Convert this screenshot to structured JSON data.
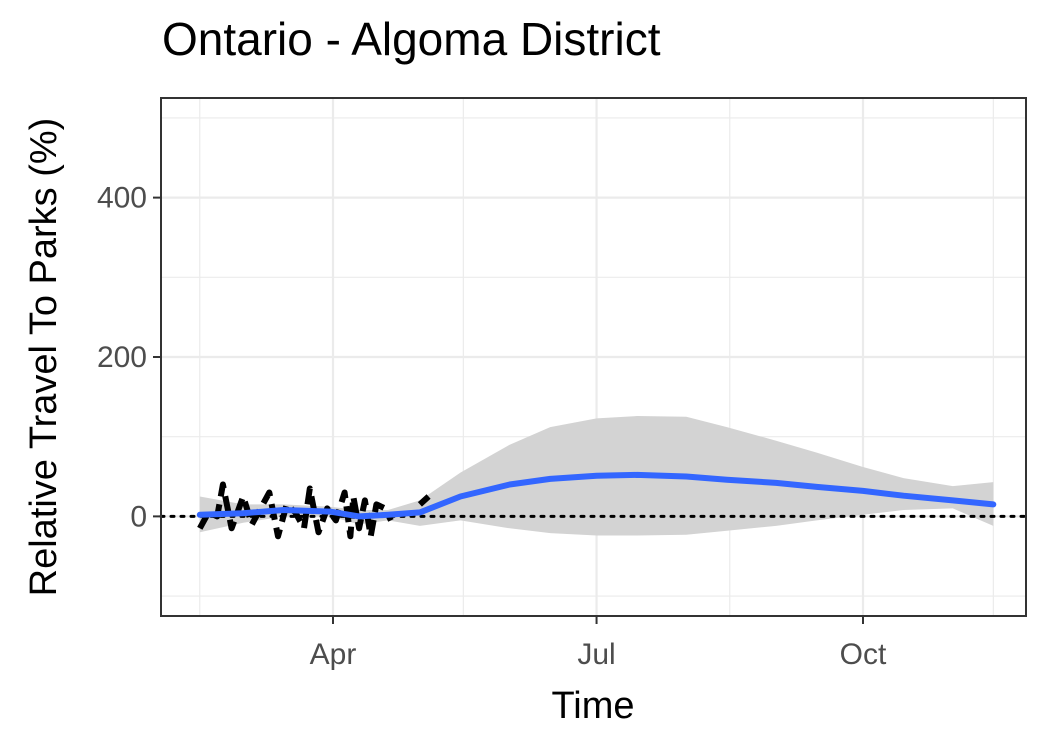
{
  "chart_data": {
    "type": "line",
    "title": "Ontario - Algoma District",
    "xlabel": "Time",
    "ylabel": "Relative Travel To Parks (%)",
    "x_ticks": [
      "Apr",
      "Jul",
      "Oct"
    ],
    "y_ticks": [
      0,
      200,
      400
    ],
    "ylim": [
      -125,
      525
    ],
    "reference_line": {
      "y": 0,
      "style": "dotted"
    },
    "grid": true,
    "series": [
      {
        "role": "daily",
        "color": "#000000",
        "x": [
          "Feb 15",
          "Feb 18",
          "Feb 21",
          "Feb 23",
          "Feb 26",
          "Mar 1",
          "Mar 4",
          "Mar 7",
          "Mar 10",
          "Mar 13",
          "Mar 16",
          "Mar 19",
          "Mar 22",
          "Mar 24",
          "Mar 27",
          "Mar 30",
          "Apr 2",
          "Apr 5",
          "Apr 7",
          "Apr 8",
          "Apr 10",
          "Apr 12",
          "Apr 14",
          "Apr 16",
          "Apr 19",
          "Apr 21",
          "May 1",
          "May 4"
        ],
        "values": [
          -15,
          5,
          0,
          40,
          -15,
          25,
          -10,
          10,
          30,
          -25,
          15,
          5,
          -15,
          35,
          -20,
          10,
          -5,
          30,
          -25,
          25,
          -15,
          20,
          -25,
          15,
          10,
          -5,
          15,
          25
        ]
      },
      {
        "role": "trend",
        "color": "#3366ff",
        "x": [
          "Feb 15",
          "Mar 1",
          "Mar 15",
          "Mar 31",
          "Apr 10",
          "Apr 20",
          "May 1",
          "May 15",
          "Jun 1",
          "Jun 15",
          "Jul 1",
          "Jul 15",
          "Aug 1",
          "Aug 15",
          "Sep 1",
          "Sep 15",
          "Oct 1",
          "Oct 15",
          "Nov 1",
          "Nov 15"
        ],
        "values": [
          2,
          4,
          8,
          6,
          0,
          2,
          5,
          25,
          40,
          47,
          51,
          52,
          50,
          46,
          42,
          37,
          32,
          26,
          20,
          15
        ],
        "ci_upper": [
          25,
          15,
          15,
          12,
          8,
          8,
          20,
          55,
          90,
          112,
          123,
          126,
          125,
          112,
          95,
          80,
          62,
          48,
          38,
          43
        ],
        "ci_lower": [
          -20,
          -8,
          0,
          0,
          -10,
          -5,
          -12,
          -5,
          -15,
          -21,
          -24,
          -24,
          -23,
          -18,
          -12,
          -5,
          2,
          8,
          10,
          -12
        ]
      }
    ]
  }
}
